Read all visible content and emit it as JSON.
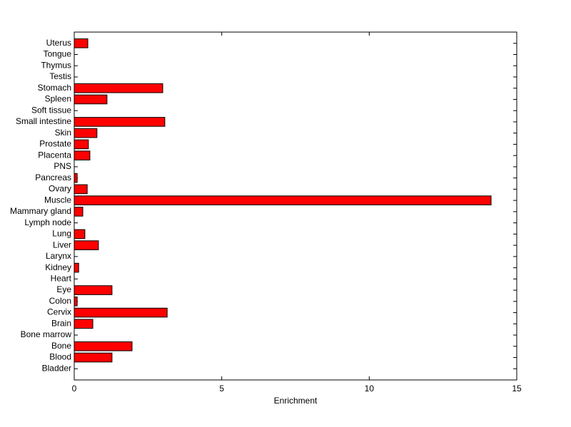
{
  "chart_data": {
    "type": "barh",
    "xlabel": "Enrichment",
    "categories": [
      "Bladder",
      "Blood",
      "Bone",
      "Bone marrow",
      "Brain",
      "Cervix",
      "Colon",
      "Eye",
      "Heart",
      "Kidney",
      "Larynx",
      "Liver",
      "Lung",
      "Lymph node",
      "Mammary gland",
      "Muscle",
      "Ovary",
      "Pancreas",
      "PNS",
      "Placenta",
      "Prostate",
      "Skin",
      "Small intestine",
      "Soft tissue",
      "Spleen",
      "Stomach",
      "Testis",
      "Thymus",
      "Tongue",
      "Uterus"
    ],
    "values": [
      0,
      1.28,
      1.96,
      0,
      0.63,
      3.15,
      0.1,
      1.28,
      0,
      0.15,
      0,
      0.82,
      0.36,
      0,
      0.29,
      14.13,
      0.44,
      0.1,
      0,
      0.53,
      0.48,
      0.77,
      3.07,
      0,
      1.11,
      3.0,
      0,
      0,
      0,
      0.46
    ],
    "color": "#ff0000",
    "xlim": [
      0,
      15
    ],
    "xticks": [
      0,
      5,
      10,
      15
    ]
  }
}
